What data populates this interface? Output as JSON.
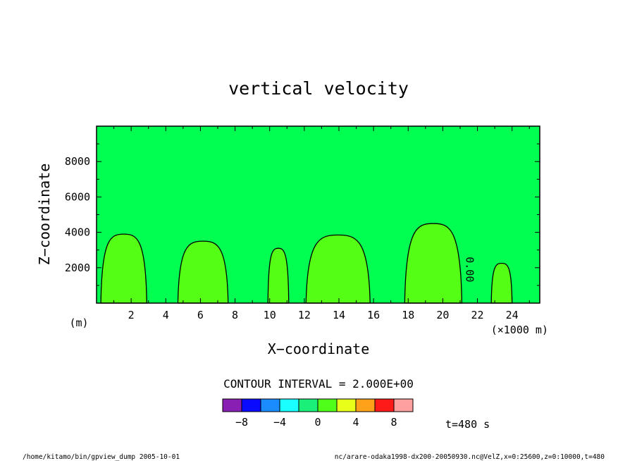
{
  "chart_data": {
    "type": "contour",
    "title": "vertical velocity",
    "xlabel": "X−coordinate",
    "ylabel": "Z−coordinate",
    "x_unit_label": "(×1000 m)",
    "y_unit_label": "(m)",
    "xlim": [
      0,
      25.6
    ],
    "ylim": [
      0,
      10000
    ],
    "x_ticks": [
      2,
      4,
      6,
      8,
      10,
      12,
      14,
      16,
      18,
      20,
      22,
      24
    ],
    "y_ticks": [
      2000,
      4000,
      6000,
      8000
    ],
    "contour_label": "0.00",
    "contour_interval": "CONTOUR INTERVAL = 2.000E+00",
    "colorbar": {
      "bounds": [
        -10,
        -8,
        -6,
        -4,
        -2,
        0,
        2,
        4,
        6,
        8,
        10
      ],
      "colors": [
        "#8a1fb4",
        "#0a0aff",
        "#1a8cff",
        "#1affff",
        "#1aef7a",
        "#4fff1a",
        "#e8ff1a",
        "#ffa21a",
        "#ff1a1a",
        "#ffa0a0"
      ],
      "tick_labels": [
        "−8",
        "−4",
        "0",
        "4",
        "8"
      ],
      "tick_values": [
        -8,
        -4,
        0,
        4,
        8
      ]
    },
    "background_color": "#00ff50",
    "positive_color": "#55ff15",
    "updrafts": [
      {
        "x0": 0.25,
        "x1": 2.9,
        "top": 3900
      },
      {
        "x0": 4.7,
        "x1": 7.6,
        "top": 3500
      },
      {
        "x0": 9.9,
        "x1": 11.1,
        "top": 3100
      },
      {
        "x0": 12.1,
        "x1": 15.8,
        "top": 3850
      },
      {
        "x0": 17.8,
        "x1": 21.1,
        "top": 4500
      },
      {
        "x0": 22.8,
        "x1": 24,
        "top": 2250
      }
    ],
    "time_label": "t=480 s"
  },
  "footer": {
    "left": "/home/kitamo/bin/gpview_dump  2005-10-01",
    "right": "nc/arare-odaka1998-dx200-20050930.nc@VelZ,x=0:25600,z=0:10000,t=480"
  }
}
